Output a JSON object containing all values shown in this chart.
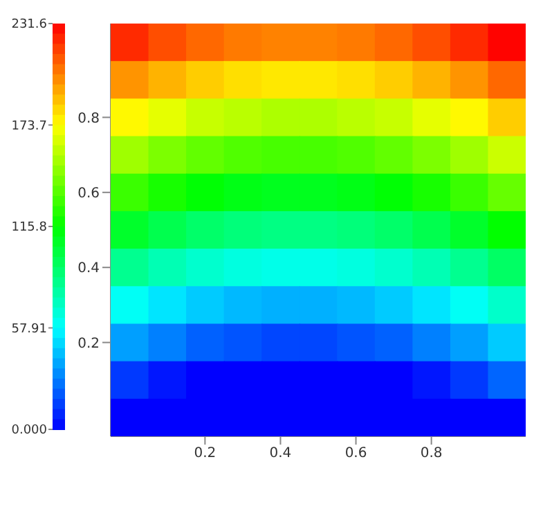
{
  "chart_data": {
    "type": "heatmap",
    "categories": [
      null,
      null,
      "0.2",
      null,
      "0.4",
      null,
      "0.6",
      null,
      "0.8",
      null,
      null
    ],
    "y_categories": [
      null,
      null,
      "0.8",
      null,
      "0.6",
      null,
      "0.4",
      null,
      "0.2",
      null,
      null
    ],
    "clim": [
      0,
      231.6
    ],
    "cticks": [
      {
        "value": 0,
        "label": "0.000"
      },
      57.91,
      115.8,
      173.7,
      231.6
    ],
    "cells": [
      [
        222,
        214,
        208,
        204,
        202,
        202,
        204,
        208,
        214,
        222,
        231
      ],
      [
        198,
        191,
        185,
        181,
        179,
        179,
        181,
        185,
        191,
        198,
        208
      ],
      [
        175,
        168,
        161,
        158,
        155,
        155,
        158,
        161,
        168,
        175,
        185
      ],
      [
        152,
        144,
        138,
        134,
        132,
        132,
        134,
        138,
        144,
        152,
        162
      ],
      [
        129,
        121,
        115,
        111,
        109,
        109,
        111,
        115,
        121,
        129,
        139
      ],
      [
        106,
        98,
        92,
        88,
        86,
        86,
        88,
        92,
        98,
        106,
        116
      ],
      [
        83,
        75,
        69,
        65,
        63,
        63,
        65,
        69,
        75,
        83,
        93
      ],
      [
        60,
        52,
        46,
        42,
        40,
        40,
        42,
        46,
        52,
        60,
        70
      ],
      [
        36,
        29,
        22,
        19,
        16,
        16,
        19,
        22,
        29,
        36,
        46
      ],
      [
        13,
        5,
        0,
        0,
        0,
        0,
        0,
        0,
        5,
        13,
        23
      ],
      [
        0,
        0,
        0,
        0,
        0,
        0,
        0,
        0,
        0,
        0,
        0
      ]
    ]
  }
}
